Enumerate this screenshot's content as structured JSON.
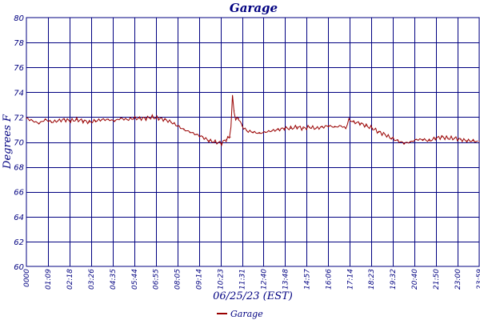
{
  "chart_data": {
    "type": "line",
    "title": "Garage",
    "xlabel": "06/25/23 (EST)",
    "ylabel": "Degrees F",
    "ylim": [
      60,
      80
    ],
    "yticks": [
      60,
      62,
      64,
      66,
      68,
      70,
      72,
      74,
      76,
      78,
      80
    ],
    "xlim": [
      "00:00",
      "23:59"
    ],
    "xtick_labels": [
      "0000",
      "01:09",
      "02:18",
      "03:26",
      "04:35",
      "05:44",
      "06:55",
      "08:05",
      "09:14",
      "10:23",
      "11:31",
      "12:40",
      "13:48",
      "14:57",
      "16:06",
      "17:14",
      "18:23",
      "19:32",
      "20:40",
      "21:50",
      "23:00",
      "23:59"
    ],
    "grid": true,
    "legend_position": "bottom-center",
    "series": [
      {
        "name": "Garage",
        "color": "#990000",
        "x": [
          "00:00",
          "00:20",
          "00:40",
          "01:00",
          "01:20",
          "01:40",
          "02:00",
          "02:20",
          "02:40",
          "03:00",
          "03:20",
          "03:40",
          "04:00",
          "04:20",
          "04:40",
          "05:00",
          "05:20",
          "05:40",
          "06:00",
          "06:20",
          "06:40",
          "07:00",
          "07:20",
          "07:40",
          "08:00",
          "08:20",
          "08:40",
          "09:00",
          "09:20",
          "09:40",
          "10:00",
          "10:20",
          "10:35",
          "10:48",
          "10:55",
          "11:00",
          "11:05",
          "11:15",
          "11:25",
          "11:40",
          "12:00",
          "12:20",
          "12:40",
          "13:00",
          "13:20",
          "13:40",
          "14:00",
          "14:20",
          "14:40",
          "15:00",
          "15:20",
          "15:40",
          "16:00",
          "16:20",
          "16:40",
          "16:55",
          "17:05",
          "17:20",
          "17:40",
          "18:00",
          "18:20",
          "18:40",
          "19:00",
          "19:20",
          "19:40",
          "20:00",
          "20:20",
          "20:40",
          "21:00",
          "21:20",
          "21:40",
          "22:00",
          "22:20",
          "22:40",
          "23:00",
          "23:20",
          "23:40",
          "23:59"
        ],
        "y": [
          71.9,
          71.7,
          71.5,
          71.8,
          71.6,
          71.7,
          71.8,
          71.7,
          71.8,
          71.7,
          71.6,
          71.7,
          71.8,
          71.8,
          71.7,
          71.9,
          71.8,
          71.9,
          71.9,
          71.9,
          72.0,
          71.9,
          71.8,
          71.6,
          71.3,
          71.0,
          70.8,
          70.6,
          70.4,
          70.1,
          70.0,
          69.9,
          70.2,
          70.4,
          73.6,
          72.5,
          71.8,
          71.9,
          71.3,
          70.9,
          70.8,
          70.7,
          70.8,
          70.9,
          71.0,
          71.1,
          71.1,
          71.2,
          71.1,
          71.2,
          71.1,
          71.2,
          71.3,
          71.2,
          71.3,
          71.1,
          71.8,
          71.6,
          71.5,
          71.3,
          71.1,
          70.8,
          70.6,
          70.3,
          70.1,
          69.9,
          70.0,
          70.2,
          70.2,
          70.1,
          70.3,
          70.4,
          70.3,
          70.3,
          70.2,
          70.1,
          70.1,
          70.0
        ]
      }
    ]
  }
}
